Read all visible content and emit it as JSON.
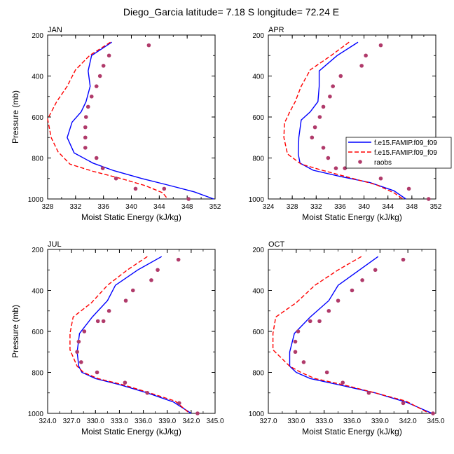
{
  "figure_title": "Diego_Garcia  latitude= 7.18 S longitude= 72.24 E",
  "legend": {
    "entries": [
      "f.e15.FAMIP.f09_f09",
      "f.e15.FAMIP.f09_f09",
      "raobs"
    ]
  },
  "colors": {
    "model_solid": "#0000ff",
    "model_dashed": "#ff0000",
    "raobs": "#b03a6a"
  },
  "chart_data": [
    {
      "type": "line",
      "title": "JAN",
      "xlabel": "Moist Static Energy (kJ/kg)",
      "ylabel": "Pressure (mb)",
      "xlim": [
        328,
        352
      ],
      "ylim": [
        200,
        1000
      ],
      "y_inverted": true,
      "x_ticks": [
        "328",
        "332",
        "336",
        "340",
        "344",
        "348",
        "352"
      ],
      "x_tick_values": [
        328,
        332,
        336,
        340,
        344,
        348,
        352
      ],
      "y_ticks": [
        "200",
        "400",
        "600",
        "800",
        "1000"
      ],
      "y_tick_values": [
        200,
        400,
        600,
        800,
        1000
      ],
      "series": [
        {
          "style": "solid",
          "color": "#0000ff",
          "x": [
            337.2,
            334.3,
            333.8,
            334.1,
            333.5,
            332.8,
            331.5,
            330.8,
            331.8,
            334.5,
            337.5,
            341.5,
            345.0,
            349.0,
            351.8
          ],
          "y": [
            235,
            300,
            375,
            450,
            525,
            575,
            625,
            700,
            775,
            825,
            862,
            900,
            930,
            965,
            1000
          ]
        },
        {
          "style": "dashed",
          "color": "#ff0000",
          "x": [
            337.0,
            334.0,
            332.0,
            330.8,
            329.3,
            328.0,
            328.5,
            329.5,
            331.2,
            334.5,
            338.5,
            342.0,
            344.5,
            345.2
          ],
          "y": [
            235,
            300,
            370,
            450,
            525,
            610,
            700,
            770,
            830,
            865,
            900,
            935,
            970,
            1000
          ]
        }
      ],
      "points": {
        "x": [
          342.5,
          336.8,
          336.0,
          335.5,
          335.0,
          334.3,
          333.8,
          333.5,
          333.4,
          333.4,
          333.4,
          335.0,
          335.9,
          337.8,
          340.6,
          344.7,
          348.2
        ],
        "y": [
          250,
          300,
          350,
          400,
          450,
          500,
          550,
          600,
          650,
          700,
          750,
          800,
          850,
          900,
          950,
          950,
          1000
        ]
      }
    },
    {
      "type": "line",
      "title": "APR",
      "xlabel": "Moist Static Energy (kJ/kg)",
      "ylabel": "",
      "xlim": [
        324,
        352
      ],
      "ylim": [
        200,
        1000
      ],
      "y_inverted": true,
      "x_ticks": [
        "324",
        "328",
        "332",
        "336",
        "340",
        "344",
        "348",
        "352"
      ],
      "x_tick_values": [
        324,
        328,
        332,
        336,
        340,
        344,
        348,
        352
      ],
      "y_ticks": [
        "200",
        "400",
        "600",
        "800",
        "1000"
      ],
      "y_tick_values": [
        200,
        400,
        600,
        800,
        1000
      ],
      "series": [
        {
          "style": "solid",
          "color": "#0000ff",
          "x": [
            339.0,
            335.5,
            332.5,
            332.5,
            332.3,
            331.0,
            329.5,
            329.1,
            329.0,
            329.3,
            331.5,
            336.0,
            341.0,
            345.0,
            347.0
          ],
          "y": [
            235,
            300,
            375,
            450,
            525,
            575,
            615,
            700,
            780,
            825,
            860,
            890,
            920,
            960,
            1000
          ]
        },
        {
          "style": "dashed",
          "color": "#ff0000",
          "x": [
            337.5,
            334.5,
            331.0,
            329.5,
            328.5,
            327.5,
            326.7,
            326.6,
            327.2,
            329.5,
            333.0,
            337.5,
            342.0,
            345.0,
            346.5
          ],
          "y": [
            235,
            300,
            370,
            450,
            525,
            580,
            630,
            700,
            780,
            830,
            860,
            895,
            930,
            970,
            1000
          ]
        }
      ],
      "points": {
        "x": [
          342.8,
          340.3,
          339.6,
          336.1,
          334.8,
          334.3,
          333.2,
          332.6,
          331.8,
          331.3,
          333.2,
          334.0,
          335.3,
          336.8,
          342.8,
          347.5,
          350.8
        ],
        "y": [
          250,
          300,
          350,
          400,
          450,
          500,
          550,
          600,
          650,
          700,
          750,
          800,
          850,
          850,
          900,
          950,
          1000
        ]
      }
    },
    {
      "type": "line",
      "title": "JUL",
      "xlabel": "Moist Static Energy (kJ/kg)",
      "ylabel": "Pressure (mb)",
      "xlim": [
        324,
        345
      ],
      "ylim": [
        200,
        1000
      ],
      "y_inverted": true,
      "x_ticks": [
        "324.0",
        "327.0",
        "330.0",
        "333.0",
        "336.0",
        "339.0",
        "342.0",
        "345.0"
      ],
      "x_tick_values": [
        324,
        327,
        330,
        333,
        336,
        339,
        342,
        345
      ],
      "y_ticks": [
        "200",
        "400",
        "600",
        "800",
        "1000"
      ],
      "y_tick_values": [
        200,
        400,
        600,
        800,
        1000
      ],
      "series": [
        {
          "style": "solid",
          "color": "#0000ff",
          "x": [
            338.3,
            335.3,
            332.5,
            331.5,
            329.6,
            328.0,
            327.7,
            327.9,
            328.3,
            330.0,
            333.0,
            336.5,
            339.8,
            342.0
          ],
          "y": [
            235,
            300,
            375,
            450,
            530,
            610,
            700,
            770,
            800,
            830,
            860,
            900,
            945,
            1000
          ]
        },
        {
          "style": "dashed",
          "color": "#ff0000",
          "x": [
            336.5,
            334.0,
            331.5,
            329.5,
            327.2,
            326.8,
            326.8,
            327.7,
            328.5,
            330.3,
            333.4,
            336.8,
            340.0,
            341.8
          ],
          "y": [
            235,
            300,
            375,
            460,
            530,
            610,
            690,
            770,
            800,
            830,
            860,
            900,
            940,
            1000
          ]
        }
      ],
      "points": {
        "x": [
          340.4,
          337.8,
          337.0,
          334.7,
          333.8,
          331.7,
          331.0,
          330.3,
          328.6,
          327.9,
          327.7,
          328.2,
          330.2,
          333.7,
          336.5,
          340.5,
          342.8
        ],
        "y": [
          250,
          300,
          350,
          400,
          450,
          500,
          550,
          550,
          600,
          650,
          700,
          750,
          800,
          850,
          900,
          950,
          1000
        ]
      }
    },
    {
      "type": "line",
      "title": "OCT",
      "xlabel": "Moist Static Energy (kJ/kg)",
      "ylabel": "",
      "xlim": [
        327,
        345
      ],
      "ylim": [
        200,
        1000
      ],
      "y_inverted": true,
      "x_ticks": [
        "327.0",
        "330.0",
        "333.0",
        "336.0",
        "339.0",
        "342.0",
        "345.0"
      ],
      "x_tick_values": [
        327,
        330,
        333,
        336,
        339,
        342,
        345
      ],
      "y_ticks": [
        "200",
        "400",
        "600",
        "800",
        "1000"
      ],
      "y_tick_values": [
        200,
        400,
        600,
        800,
        1000
      ],
      "series": [
        {
          "style": "solid",
          "color": "#0000ff",
          "x": [
            338.8,
            336.8,
            334.5,
            333.5,
            331.5,
            329.8,
            329.3,
            329.3,
            330.0,
            331.5,
            334.5,
            338.5,
            341.8,
            344.6
          ],
          "y": [
            235,
            300,
            375,
            450,
            530,
            610,
            700,
            770,
            800,
            830,
            860,
            900,
            945,
            1000
          ]
        },
        {
          "style": "dashed",
          "color": "#ff0000",
          "x": [
            337.0,
            334.5,
            332.0,
            330.0,
            327.8,
            327.5,
            327.5,
            329.3,
            330.5,
            332.0,
            335.0,
            338.5,
            341.8,
            344.3
          ],
          "y": [
            235,
            300,
            375,
            460,
            530,
            610,
            690,
            770,
            800,
            830,
            860,
            900,
            940,
            1000
          ]
        }
      ],
      "points": {
        "x": [
          341.5,
          338.5,
          337.1,
          336.0,
          334.5,
          333.5,
          332.5,
          331.5,
          330.2,
          329.9,
          329.9,
          330.8,
          333.3,
          335.0,
          337.8,
          341.5,
          344.7
        ],
        "y": [
          250,
          300,
          350,
          400,
          450,
          500,
          550,
          550,
          600,
          650,
          700,
          750,
          800,
          850,
          900,
          950,
          1000
        ]
      }
    }
  ]
}
